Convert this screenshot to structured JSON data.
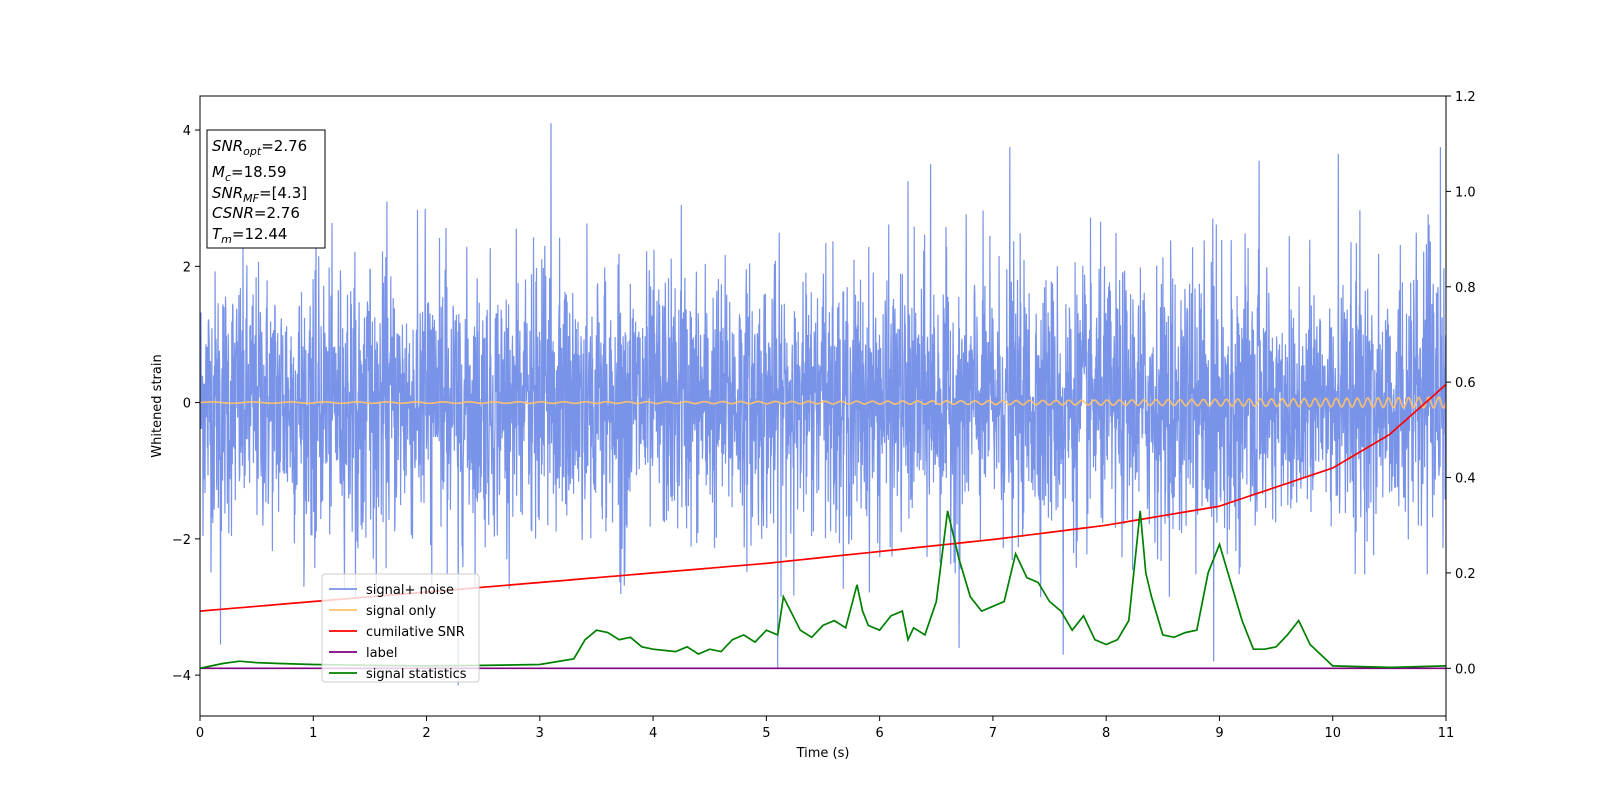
{
  "chart_data": {
    "type": "line",
    "xlabel": "Time (s)",
    "ylabel": "Whitened strain",
    "xlim": [
      0,
      11
    ],
    "ylim_left": [
      -4.6,
      4.5
    ],
    "ylim_right": [
      -0.1,
      1.2
    ],
    "x_ticks": [
      "0",
      "1",
      "2",
      "3",
      "4",
      "5",
      "6",
      "7",
      "8",
      "9",
      "10",
      "11"
    ],
    "y_ticks_left": [
      "4",
      "2",
      "0",
      "−2",
      "−4"
    ],
    "y_ticks_right": [
      "1.2",
      "1.0",
      "0.8",
      "0.6",
      "0.4",
      "0.2",
      "0.0"
    ],
    "info_box": {
      "snr_opt": "2.76",
      "mc": "18.59",
      "snr_mf": "[4.3]",
      "csnr": "2.76",
      "tm": "12.44"
    },
    "series": [
      {
        "name": "signal+ noise",
        "color": "#7893e8",
        "axis": "left",
        "description_kind": "noise",
        "std": 0.95,
        "spikes": [
          [
            0.18,
            -3.55
          ],
          [
            2.28,
            -4.15
          ],
          [
            3.1,
            4.1
          ],
          [
            5.1,
            -3.9
          ],
          [
            6.7,
            -3.6
          ],
          [
            6.45,
            3.5
          ],
          [
            7.15,
            3.75
          ],
          [
            8.95,
            -3.8
          ],
          [
            10.05,
            3.65
          ],
          [
            10.95,
            3.75
          ],
          [
            1.65,
            2.95
          ],
          [
            4.25,
            2.9
          ],
          [
            6.25,
            3.25
          ],
          [
            9.35,
            3.55
          ],
          [
            7.62,
            -3.7
          ]
        ]
      },
      {
        "name": "signal only",
        "color": "#ffc36b",
        "axis": "left",
        "chirp": {
          "amp_start": 0.01,
          "amp_end": 0.08,
          "f_start": 5,
          "f_end": 14
        }
      },
      {
        "name": "cumilative SNR",
        "color": "#ff0000",
        "axis": "right",
        "x": [
          0,
          1,
          2,
          3,
          4,
          5,
          6,
          7,
          8,
          9,
          10,
          10.5,
          11
        ],
        "y": [
          0.12,
          0.14,
          0.16,
          0.18,
          0.2,
          0.22,
          0.245,
          0.27,
          0.3,
          0.34,
          0.42,
          0.49,
          0.595
        ]
      },
      {
        "name": "label",
        "color": "#800080",
        "axis": "right",
        "x": [
          0,
          11
        ],
        "y": [
          0.0,
          0.0
        ]
      },
      {
        "name": "signal statistics",
        "color": "#008000",
        "axis": "right",
        "x": [
          0,
          0.2,
          0.35,
          0.5,
          0.7,
          1.0,
          1.5,
          2.0,
          2.5,
          3.0,
          3.3,
          3.4,
          3.5,
          3.6,
          3.7,
          3.8,
          3.9,
          4.0,
          4.2,
          4.3,
          4.4,
          4.5,
          4.6,
          4.7,
          4.8,
          4.9,
          5.0,
          5.1,
          5.15,
          5.3,
          5.4,
          5.5,
          5.6,
          5.7,
          5.8,
          5.85,
          5.9,
          6.0,
          6.1,
          6.2,
          6.25,
          6.3,
          6.4,
          6.5,
          6.6,
          6.7,
          6.8,
          6.9,
          7.0,
          7.1,
          7.2,
          7.3,
          7.4,
          7.5,
          7.6,
          7.7,
          7.8,
          7.9,
          8.0,
          8.1,
          8.2,
          8.3,
          8.35,
          8.4,
          8.5,
          8.6,
          8.7,
          8.8,
          8.9,
          9.0,
          9.1,
          9.2,
          9.3,
          9.4,
          9.5,
          9.6,
          9.7,
          9.8,
          10.0,
          10.5,
          11.0
        ],
        "y": [
          0.0,
          0.01,
          0.015,
          0.012,
          0.01,
          0.008,
          0.006,
          0.005,
          0.006,
          0.008,
          0.02,
          0.06,
          0.08,
          0.075,
          0.06,
          0.065,
          0.045,
          0.04,
          0.035,
          0.045,
          0.03,
          0.04,
          0.035,
          0.06,
          0.07,
          0.055,
          0.08,
          0.07,
          0.15,
          0.08,
          0.065,
          0.09,
          0.1,
          0.085,
          0.175,
          0.12,
          0.09,
          0.08,
          0.11,
          0.12,
          0.06,
          0.085,
          0.07,
          0.14,
          0.33,
          0.23,
          0.15,
          0.12,
          0.13,
          0.14,
          0.24,
          0.19,
          0.18,
          0.14,
          0.12,
          0.08,
          0.11,
          0.06,
          0.05,
          0.06,
          0.1,
          0.33,
          0.2,
          0.15,
          0.07,
          0.065,
          0.075,
          0.08,
          0.2,
          0.26,
          0.18,
          0.1,
          0.04,
          0.04,
          0.045,
          0.07,
          0.1,
          0.05,
          0.005,
          0.002,
          0.005
        ]
      }
    ],
    "legend_position": "lower-left"
  }
}
